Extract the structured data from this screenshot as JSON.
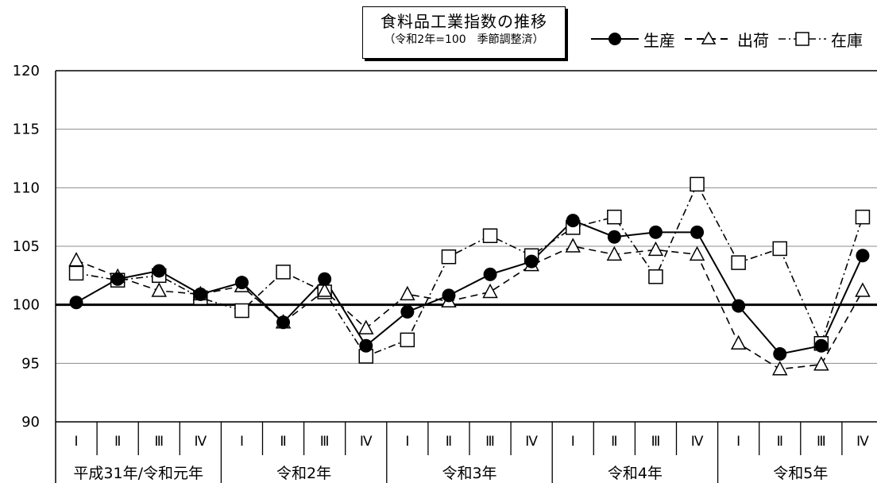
{
  "chart_data": {
    "type": "line",
    "title": "食料品工業指数の推移",
    "subtitle": "（令和2年=100　季節調整済）",
    "ylim": [
      90,
      120
    ],
    "yticks": [
      90,
      95,
      100,
      105,
      110,
      115,
      120
    ],
    "reference_line": 100,
    "categories": [
      "Ⅰ",
      "Ⅱ",
      "Ⅲ",
      "Ⅳ",
      "Ⅰ",
      "Ⅱ",
      "Ⅲ",
      "Ⅳ",
      "Ⅰ",
      "Ⅱ",
      "Ⅲ",
      "Ⅳ",
      "Ⅰ",
      "Ⅱ",
      "Ⅲ",
      "Ⅳ",
      "Ⅰ",
      "Ⅱ",
      "Ⅲ",
      "Ⅳ"
    ],
    "groups": [
      {
        "label": "平成31年/令和元年",
        "count": 4
      },
      {
        "label": "令和2年",
        "count": 4
      },
      {
        "label": "令和3年",
        "count": 4
      },
      {
        "label": "令和4年",
        "count": 4
      },
      {
        "label": "令和5年",
        "count": 4
      }
    ],
    "series": [
      {
        "name": "生産",
        "marker": "circle",
        "style": "solid",
        "values": [
          100.2,
          102.2,
          102.9,
          100.9,
          101.9,
          98.5,
          102.2,
          96.5,
          99.4,
          100.8,
          102.6,
          103.7,
          107.2,
          105.8,
          106.2,
          106.2,
          99.9,
          95.8,
          96.5,
          104.2
        ]
      },
      {
        "name": "出荷",
        "marker": "triangle",
        "style": "dashed",
        "values": [
          103.8,
          102.4,
          101.2,
          100.9,
          101.6,
          98.5,
          101.2,
          98.0,
          100.9,
          100.3,
          101.1,
          103.4,
          105.0,
          104.3,
          104.7,
          104.3,
          96.7,
          94.5,
          94.9,
          101.2
        ]
      },
      {
        "name": "在庫",
        "marker": "square",
        "style": "dashdot",
        "values": [
          102.7,
          102.1,
          102.5,
          100.6,
          99.5,
          102.8,
          101.1,
          95.6,
          97.0,
          104.1,
          105.9,
          104.2,
          106.6,
          107.5,
          102.4,
          110.3,
          103.6,
          104.8,
          96.7,
          107.5
        ]
      }
    ],
    "grid": true,
    "legend_position": "top-right"
  }
}
